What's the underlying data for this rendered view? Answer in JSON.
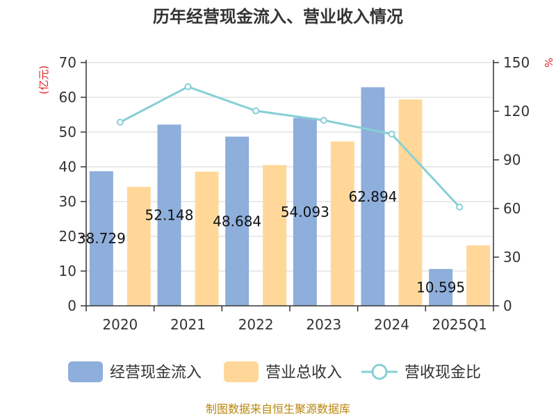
{
  "chart_data": {
    "type": "bar",
    "title": "历年经营现金流入、营业收入情况",
    "categories": [
      "2020",
      "2021",
      "2022",
      "2023",
      "2024",
      "2025Q1"
    ],
    "series": [
      {
        "name": "经营现金流入",
        "type": "bar",
        "axis": "left",
        "color": "#8eaedb",
        "values": [
          38.729,
          52.148,
          48.684,
          54.093,
          62.894,
          10.595
        ]
      },
      {
        "name": "营业总收入",
        "type": "bar",
        "axis": "left",
        "color": "#ffd899",
        "values": [
          34.2,
          38.6,
          40.5,
          47.3,
          59.4,
          17.4
        ]
      },
      {
        "name": "营收现金比",
        "type": "line",
        "axis": "right",
        "color": "#86cfd6",
        "values": [
          113.2,
          135.1,
          120.2,
          114.4,
          105.9,
          60.9
        ]
      }
    ],
    "data_labels": [
      "38.729",
      "52.148",
      "48.684",
      "54.093",
      "62.894",
      "10.595"
    ],
    "y_left": {
      "label": "(亿元)",
      "ylim": [
        0,
        70
      ],
      "ticks": [
        0,
        10,
        20,
        30,
        40,
        50,
        60,
        70
      ]
    },
    "y_right": {
      "label": "%",
      "ylim": [
        0,
        150
      ],
      "ticks": [
        0,
        30,
        60,
        90,
        120,
        150
      ]
    },
    "grid": true,
    "legend_position": "bottom"
  },
  "source": "制图数据来自恒生聚源数据库"
}
